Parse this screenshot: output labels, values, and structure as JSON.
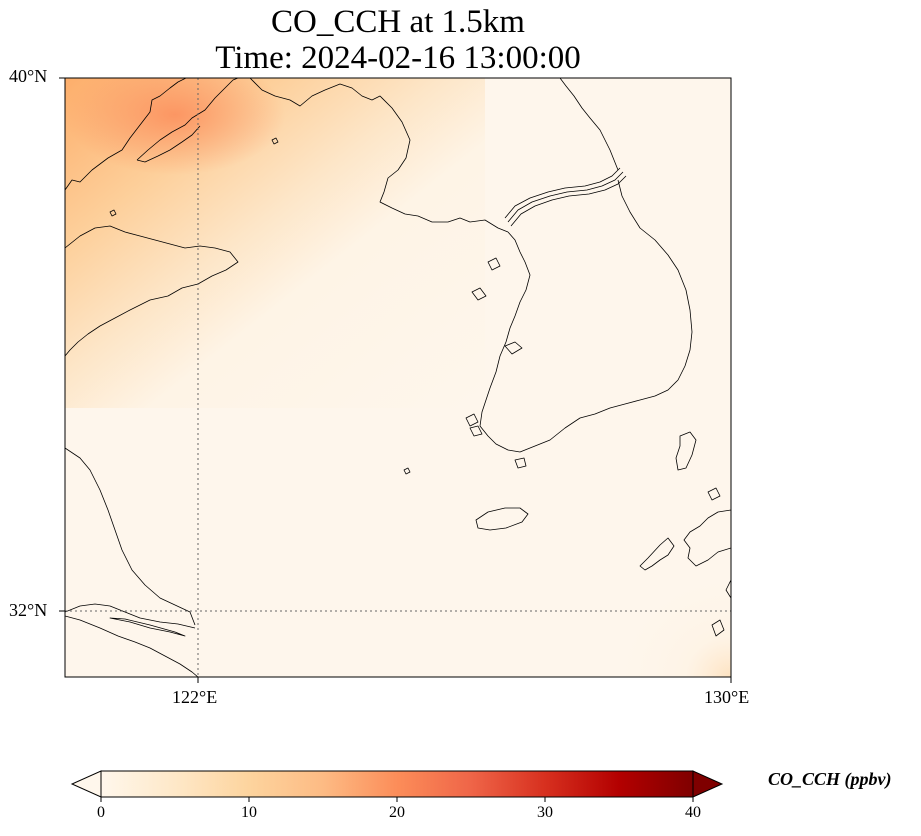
{
  "title": {
    "line1": "CO_CCH at 1.5km",
    "line2": "Time: 2024-02-16 13:00:00"
  },
  "map": {
    "projection": "PlateCarree",
    "lon_range": [
      120,
      130
    ],
    "lat_range": [
      31,
      40
    ],
    "gridlines": {
      "style": "dotted",
      "lons": [
        122
      ],
      "lats": [
        32
      ]
    },
    "lat_ticks": [
      {
        "value": 40,
        "label": "40°N"
      },
      {
        "value": 32,
        "label": "32°N"
      }
    ],
    "lon_ticks": [
      {
        "value": 122,
        "label": "122°E"
      },
      {
        "value": 130,
        "label": "130°E"
      }
    ],
    "field": "CO_CCH",
    "pattern": "high values (~15 ppbv) in the northwest corner near 40°N 120–122°E, low (~1–3 ppbv) elsewhere, slight rise in far southeast corner"
  },
  "colorbar": {
    "label": "CO_CCH (ppbv)",
    "colormap": "OrRd",
    "min": 0,
    "max": 40,
    "extend": "both",
    "ticks": [
      "0",
      "10",
      "20",
      "30",
      "40"
    ],
    "colors": [
      "#fff7ec",
      "#fee8c8",
      "#fdd49e",
      "#fdbb84",
      "#fc8d59",
      "#ef6548",
      "#d7301f",
      "#b30000",
      "#7f0000"
    ]
  }
}
